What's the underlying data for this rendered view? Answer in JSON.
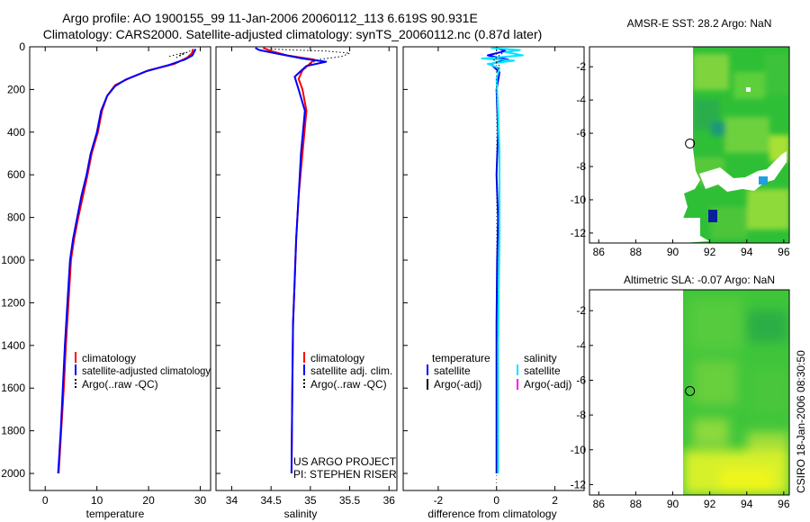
{
  "figure": {
    "title_line1": "Argo profile: AO 1900155_99 11-Jan-2006 20060112_113 6.619S 90.931E",
    "title_line2": "Climatology: CARS2000. Satellite-adjusted climatology: synTS_20060112.nc (0.87d later)",
    "stamp": "CSIRO 18-Jan-2006 08:30:50",
    "project_line1": "US ARGO PROJECT",
    "project_line2": "PI: STEPHEN RISER"
  },
  "colors": {
    "climatology": "#ff0000",
    "satellite_adjusted": "#0000ff",
    "argo": "#000000",
    "salinity_satellite": "#00e5ff",
    "salinity_argo": "#ff00ff"
  },
  "chart_data": [
    {
      "type": "line",
      "xlabel": "temperature",
      "ylabel": "",
      "xlim": [
        -3,
        32
      ],
      "ylim": [
        2080,
        0
      ],
      "xticks": [
        0,
        10,
        20,
        30
      ],
      "yticks": [
        0,
        200,
        400,
        600,
        800,
        1000,
        1200,
        1400,
        1600,
        1800,
        2000
      ],
      "legend": [
        "climatology",
        "satellite-adjusted climatology",
        "Argo(..raw -QC)"
      ],
      "series": [
        {
          "name": "climatology",
          "color": "#ff0000",
          "points": [
            [
              28.6,
              10
            ],
            [
              28.4,
              30
            ],
            [
              27.5,
              50
            ],
            [
              25,
              80
            ],
            [
              20,
              110
            ],
            [
              16,
              150
            ],
            [
              13.5,
              180
            ],
            [
              12,
              230
            ],
            [
              11,
              300
            ],
            [
              10.2,
              400
            ],
            [
              9,
              500
            ],
            [
              8.2,
              600
            ],
            [
              7.3,
              700
            ],
            [
              6.4,
              800
            ],
            [
              5.6,
              900
            ],
            [
              5,
              1000
            ],
            [
              4.5,
              1200
            ],
            [
              4,
              1400
            ],
            [
              3.6,
              1600
            ],
            [
              3.1,
              1800
            ],
            [
              2.6,
              2000
            ]
          ]
        },
        {
          "name": "satellite-adjusted climatology",
          "color": "#0000ff",
          "points": [
            [
              29.1,
              10
            ],
            [
              28.5,
              40
            ],
            [
              27,
              60
            ],
            [
              24,
              85
            ],
            [
              19.5,
              115
            ],
            [
              15.5,
              155
            ],
            [
              13.5,
              185
            ],
            [
              12,
              230
            ],
            [
              10.8,
              300
            ],
            [
              10,
              400
            ],
            [
              8.8,
              500
            ],
            [
              8,
              600
            ],
            [
              7,
              700
            ],
            [
              6.2,
              800
            ],
            [
              5.4,
              900
            ],
            [
              4.8,
              1000
            ],
            [
              4.3,
              1200
            ],
            [
              3.8,
              1400
            ],
            [
              3.4,
              1600
            ],
            [
              3,
              1800
            ],
            [
              2.5,
              2000
            ]
          ]
        },
        {
          "name": "Argo(..raw -QC)",
          "color": "#000000",
          "dotted": true,
          "points": [
            [
              24,
              45
            ],
            [
              25.5,
              35
            ],
            [
              27,
              28
            ],
            [
              26,
              40
            ],
            [
              28,
              20
            ],
            [
              25,
              55
            ]
          ]
        }
      ]
    },
    {
      "type": "line",
      "xlabel": "salinity",
      "xlim": [
        33.8,
        36.1
      ],
      "ylim": [
        2080,
        0
      ],
      "xticks": [
        34,
        34.5,
        35,
        35.5,
        36
      ],
      "legend": [
        "climatology",
        "satellite adj. clim.",
        "Argo(..raw -QC)"
      ],
      "series": [
        {
          "name": "climatology",
          "color": "#ff0000",
          "points": [
            [
              34.4,
              5
            ],
            [
              34.5,
              20
            ],
            [
              34.7,
              40
            ],
            [
              35.05,
              60
            ],
            [
              34.9,
              110
            ],
            [
              34.85,
              150
            ],
            [
              34.9,
              200
            ],
            [
              34.95,
              300
            ],
            [
              34.9,
              500
            ],
            [
              34.85,
              700
            ],
            [
              34.82,
              900
            ],
            [
              34.8,
              1100
            ],
            [
              34.78,
              1300
            ],
            [
              34.77,
              1600
            ],
            [
              34.76,
              2000
            ]
          ]
        },
        {
          "name": "satellite adj. clim.",
          "color": "#0000ff",
          "points": [
            [
              34.3,
              5
            ],
            [
              34.35,
              15
            ],
            [
              34.55,
              30
            ],
            [
              34.9,
              55
            ],
            [
              35.2,
              70
            ],
            [
              34.95,
              90
            ],
            [
              34.8,
              140
            ],
            [
              34.85,
              200
            ],
            [
              34.93,
              300
            ],
            [
              34.88,
              500
            ],
            [
              34.85,
              700
            ],
            [
              34.82,
              900
            ],
            [
              34.8,
              1100
            ],
            [
              34.78,
              1300
            ],
            [
              34.77,
              1600
            ],
            [
              34.76,
              2000
            ]
          ]
        },
        {
          "name": "Argo(..raw -QC)",
          "color": "#000000",
          "dotted": true,
          "points": [
            [
              34.5,
              10
            ],
            [
              34.8,
              15
            ],
            [
              35.2,
              20
            ],
            [
              35.5,
              30
            ],
            [
              35.4,
              45
            ],
            [
              35.1,
              60
            ],
            [
              35.0,
              80
            ]
          ]
        }
      ]
    },
    {
      "type": "line",
      "xlabel": "difference from climatology",
      "xlim": [
        -3.2,
        3.0
      ],
      "ylim": [
        2080,
        0
      ],
      "xticks": [
        -2,
        0,
        2
      ],
      "legend_temperature": {
        "heading": "temperature",
        "items": [
          "satellite",
          "Argo(-adj)"
        ]
      },
      "legend_salinity": {
        "heading": "salinity",
        "items": [
          "satellite",
          "Argo(-adj)"
        ]
      },
      "series": [
        {
          "name": "satellite",
          "group": "temperature",
          "color": "#0000ff",
          "points": [
            [
              0,
              5
            ],
            [
              0.3,
              20
            ],
            [
              -0.3,
              40
            ],
            [
              0.4,
              60
            ],
            [
              -0.2,
              80
            ],
            [
              0.1,
              120
            ],
            [
              0,
              200
            ],
            [
              0.05,
              400
            ],
            [
              0,
              600
            ],
            [
              0.05,
              800
            ],
            [
              0.02,
              1000
            ],
            [
              0,
              1300
            ],
            [
              0,
              1600
            ],
            [
              0,
              2000
            ]
          ]
        },
        {
          "name": "satellite",
          "group": "salinity",
          "color": "#00e5ff",
          "points": [
            [
              -0.2,
              5
            ],
            [
              0.8,
              15
            ],
            [
              0.3,
              25
            ],
            [
              0.9,
              40
            ],
            [
              -0.5,
              55
            ],
            [
              0.6,
              65
            ],
            [
              -0.3,
              80
            ],
            [
              0.1,
              100
            ],
            [
              0,
              150
            ],
            [
              0.05,
              300
            ],
            [
              0.1,
              500
            ],
            [
              0.1,
              700
            ],
            [
              0.1,
              900
            ],
            [
              0.08,
              1100
            ],
            [
              0.05,
              1400
            ],
            [
              0.05,
              1700
            ],
            [
              0.05,
              2000
            ]
          ]
        },
        {
          "name": "Argo(-adj)",
          "group": "temperature",
          "color": "#000000",
          "dotted": true,
          "points": [
            [
              0.2,
              30
            ],
            [
              -0.1,
              60
            ],
            [
              0.1,
              90
            ],
            [
              0,
              120
            ]
          ]
        }
      ]
    },
    {
      "type": "heatmap",
      "title": "AMSR-E SST: 28.2 Argo: NaN",
      "xlim": [
        85.5,
        96.3
      ],
      "ylim": [
        -12.6,
        -0.8
      ],
      "xticks": [
        86,
        88,
        90,
        92,
        94,
        96
      ],
      "yticks": [
        -2,
        -4,
        -6,
        -8,
        -10,
        -12
      ],
      "profile_location": [
        90.93,
        -6.62
      ]
    },
    {
      "type": "heatmap",
      "title": "Altimetric SLA: -0.07 Argo: NaN",
      "xlim": [
        85.5,
        96.3
      ],
      "ylim": [
        -12.6,
        -0.8
      ],
      "xticks": [
        86,
        88,
        90,
        92,
        94,
        96
      ],
      "yticks": [
        -2,
        -4,
        -6,
        -8,
        -10,
        -12
      ],
      "profile_location": [
        90.93,
        -6.62
      ]
    }
  ]
}
